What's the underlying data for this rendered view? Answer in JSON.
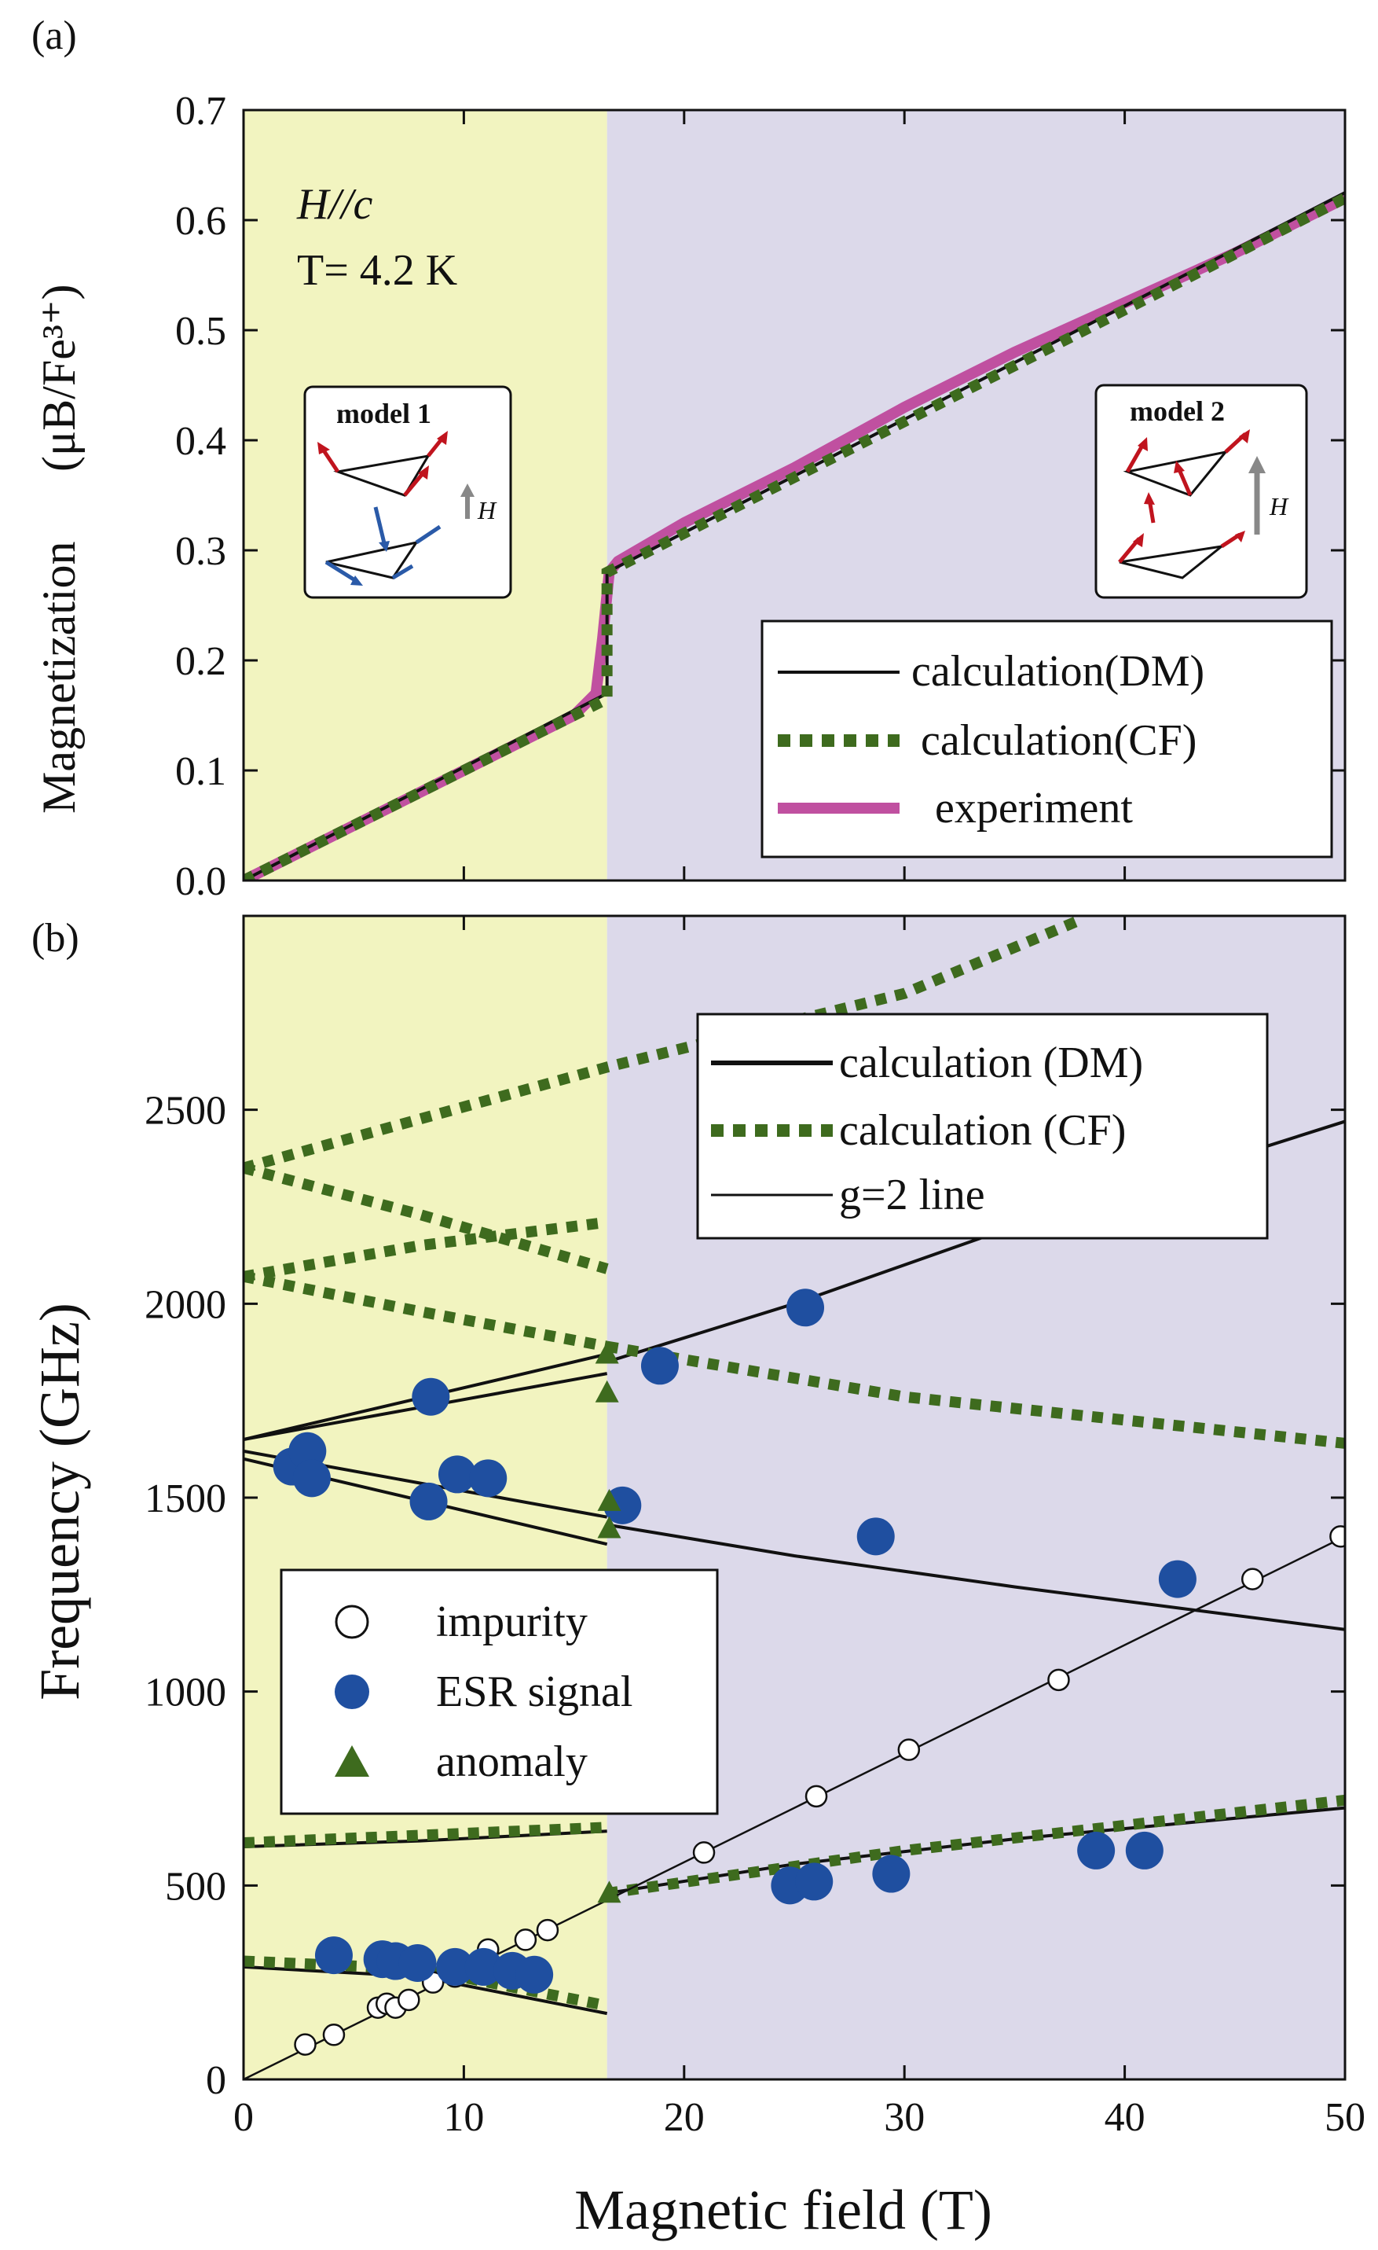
{
  "chart_data": [
    {
      "type": "line",
      "panel_label": "(a)",
      "xlim": [
        0,
        50
      ],
      "ylim": [
        0,
        0.7
      ],
      "xticks": [
        0,
        10,
        20,
        30,
        40,
        50
      ],
      "yticks": [
        "0.0",
        "0.1",
        "0.2",
        "0.3",
        "0.4",
        "0.5",
        "0.6",
        "0.7"
      ],
      "ylabel_main": "Magnetization",
      "ylabel_unit": "(μB/Fe³⁺)",
      "annotations": {
        "line1": "H//c",
        "line2": "T= 4.2 K"
      },
      "regions": [
        {
          "from": 0,
          "to": 16.5,
          "color": "#f2f4c0"
        },
        {
          "from": 16.5,
          "to": 50,
          "color": "#dcd9ea"
        }
      ],
      "inset_models": [
        {
          "title": "model 1",
          "field_label": "H"
        },
        {
          "title": "model 2",
          "field_label": "H"
        }
      ],
      "series": [
        {
          "name": "calculation(DM)",
          "style": "solid",
          "color": "#111111",
          "x": [
            0,
            16.5,
            16.5,
            50
          ],
          "y": [
            0,
            0.17,
            0.28,
            0.625
          ]
        },
        {
          "name": "calculation(CF)",
          "style": "dotted",
          "color": "#3e6b1e",
          "x": [
            0,
            16.5,
            16.5,
            50
          ],
          "y": [
            0,
            0.165,
            0.28,
            0.62
          ]
        },
        {
          "name": "experiment",
          "style": "thick",
          "color": "#c050a0",
          "x": [
            0,
            5,
            10,
            15,
            16.0,
            16.3,
            16.6,
            17,
            20,
            25,
            30,
            35,
            40,
            45,
            50
          ],
          "y": [
            0,
            0.05,
            0.1,
            0.15,
            0.17,
            0.22,
            0.28,
            0.29,
            0.325,
            0.375,
            0.43,
            0.48,
            0.525,
            0.57,
            0.62
          ]
        }
      ],
      "legend": [
        "calculation(DM)",
        "calculation(CF)",
        "experiment"
      ]
    },
    {
      "type": "scatter",
      "panel_label": "(b)",
      "xlim": [
        0,
        50
      ],
      "ylim": [
        0,
        3000
      ],
      "xticks": [
        0,
        10,
        20,
        30,
        40,
        50
      ],
      "yticks": [
        0,
        500,
        1000,
        1500,
        2000,
        2500
      ],
      "xlabel": "Magnetic field (T)",
      "ylabel": "Frequency (GHz)",
      "regions": [
        {
          "from": 0,
          "to": 16.5,
          "color": "#f2f4c0"
        },
        {
          "from": 16.5,
          "to": 50,
          "color": "#dcd9ea"
        }
      ],
      "lines": [
        {
          "name": "calculation (DM)",
          "style": "solid",
          "color": "#111111",
          "segments": [
            {
              "x": [
                0,
                16.5
              ],
              "y": [
                1650,
                1870
              ]
            },
            {
              "x": [
                0,
                16.5
              ],
              "y": [
                1650,
                1820
              ]
            },
            {
              "x": [
                0,
                16.5
              ],
              "y": [
                1620,
                1450
              ]
            },
            {
              "x": [
                0,
                16.5
              ],
              "y": [
                1600,
                1380
              ]
            },
            {
              "x": [
                16.5,
                25,
                35,
                50
              ],
              "y": [
                1850,
                2000,
                2200,
                2470
              ]
            },
            {
              "x": [
                16.5,
                25,
                35,
                50
              ],
              "y": [
                1430,
                1350,
                1270,
                1160
              ]
            },
            {
              "x": [
                0,
                8,
                16.5
              ],
              "y": [
                600,
                615,
                640
              ]
            },
            {
              "x": [
                0,
                8,
                16.5
              ],
              "y": [
                290,
                265,
                170
              ]
            },
            {
              "x": [
                16.5,
                25,
                35,
                50
              ],
              "y": [
                480,
                555,
                620,
                700
              ]
            }
          ]
        },
        {
          "name": "calculation (CF)",
          "style": "dotted",
          "color": "#3e6b1e",
          "segments": [
            {
              "x": [
                0,
                16.5,
                30,
                38
              ],
              "y": [
                2350,
                2610,
                2800,
                2990
              ]
            },
            {
              "x": [
                0,
                8,
                16.5
              ],
              "y": [
                2350,
                2230,
                2090
              ]
            },
            {
              "x": [
                0,
                8,
                16.5
              ],
              "y": [
                2070,
                2150,
                2210
              ]
            },
            {
              "x": [
                0,
                8,
                16.5
              ],
              "y": [
                2070,
                1980,
                1890
              ]
            },
            {
              "x": [
                16.5,
                30,
                50
              ],
              "y": [
                1890,
                1760,
                1640
              ]
            },
            {
              "x": [
                0,
                16.5
              ],
              "y": [
                610,
                650
              ]
            },
            {
              "x": [
                0,
                8,
                16.5
              ],
              "y": [
                305,
                285,
                190
              ]
            },
            {
              "x": [
                16.5,
                30,
                50
              ],
              "y": [
                480,
                590,
                720
              ]
            }
          ]
        },
        {
          "name": "g=2 line",
          "style": "thin",
          "color": "#111111",
          "segments": [
            {
              "x": [
                0,
                50
              ],
              "y": [
                0,
                1400
              ]
            }
          ]
        }
      ],
      "points": {
        "impurity": {
          "x": [
            2.8,
            4.1,
            6.1,
            6.5,
            6.9,
            7.5,
            8.6,
            9.6,
            11.1,
            12.8,
            13.8,
            20.9,
            26,
            30.2,
            37,
            45.8,
            49.8
          ],
          "y": [
            90,
            115,
            185,
            195,
            185,
            205,
            250,
            265,
            335,
            360,
            385,
            585,
            730,
            850,
            1030,
            1290,
            1400
          ]
        },
        "esr": {
          "x": [
            2.2,
            2.9,
            3.1,
            4.1,
            6.3,
            6.9,
            7.9,
            8.4,
            8.5,
            9.6,
            9.7,
            10.9,
            11.1,
            12.2,
            13.2,
            17.2,
            18.9,
            24.8,
            25.5,
            25.9,
            28.7,
            29.4,
            38.7,
            40.9,
            42.4
          ],
          "y": [
            1580,
            1620,
            1550,
            320,
            310,
            305,
            300,
            1490,
            1760,
            290,
            1560,
            290,
            1550,
            280,
            270,
            1480,
            1840,
            500,
            1990,
            510,
            1400,
            530,
            590,
            590,
            1290
          ]
        },
        "anomaly": {
          "x": [
            16.5,
            16.5,
            16.6,
            16.6,
            16.6
          ],
          "y": [
            1870,
            1770,
            1490,
            1420,
            480
          ]
        }
      },
      "legend_lines": [
        "calculation (DM)",
        "calculation (CF)",
        "g=2 line"
      ],
      "legend_points": [
        "impurity",
        "ESR signal",
        "anomaly"
      ],
      "colors": {
        "esr": "#1f4fa0",
        "anomaly": "#3e6b1e",
        "cf": "#3e6b1e",
        "dm": "#111111"
      }
    }
  ]
}
